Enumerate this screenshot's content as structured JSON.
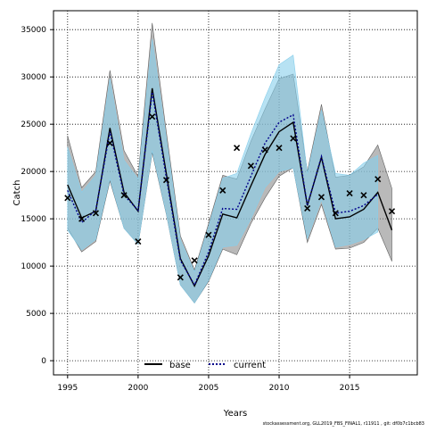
{
  "chart_data": {
    "type": "line",
    "xlabel": "Years",
    "ylabel": "Catch",
    "xlim": [
      1994,
      2019.8
    ],
    "ylim": [
      -1500,
      37000
    ],
    "x_ticks": [
      1995,
      2000,
      2005,
      2010,
      2015
    ],
    "y_ticks": [
      0,
      5000,
      10000,
      15000,
      20000,
      25000,
      30000,
      35000
    ],
    "grid": true,
    "legend_position": "bottom-center",
    "colors": {
      "base_line": "#000000",
      "base_band": "#808080",
      "current_line": "#00008b",
      "current_band": "#87ceeb",
      "observed": "#000000"
    },
    "series": [
      {
        "name": "base",
        "style": "solid",
        "x": [
          1995,
          1996,
          1997,
          1998,
          1999,
          2000,
          2001,
          2002,
          2003,
          2004,
          2005,
          2006,
          2007,
          2008,
          2009,
          2010,
          2011,
          2012,
          2013,
          2014,
          2015,
          2016,
          2017,
          2018
        ],
        "values": [
          18600,
          15100,
          15800,
          24600,
          17800,
          15800,
          28800,
          19800,
          10800,
          7900,
          11100,
          15500,
          15100,
          18500,
          21800,
          24200,
          25200,
          16400,
          21500,
          15000,
          15200,
          16000,
          17800,
          13800
        ],
        "upper": [
          23800,
          18300,
          20000,
          30700,
          22200,
          19500,
          35700,
          24200,
          13200,
          9600,
          14500,
          19600,
          19200,
          23200,
          26600,
          29800,
          30300,
          20000,
          27100,
          19400,
          19600,
          20500,
          22800,
          18200
        ],
        "lower": [
          14000,
          11500,
          12600,
          19000,
          14000,
          12300,
          22000,
          15500,
          8000,
          6100,
          8400,
          11800,
          11200,
          14500,
          17200,
          19500,
          20400,
          12500,
          16500,
          11800,
          11900,
          12500,
          14000,
          10500
        ]
      },
      {
        "name": "current",
        "style": "dotted",
        "x": [
          1995,
          1996,
          1997,
          1998,
          1999,
          2000,
          2001,
          2002,
          2003,
          2004,
          2005,
          2006,
          2007,
          2008,
          2009,
          2010,
          2011,
          2012,
          2013,
          2014,
          2015,
          2016,
          2017
        ],
        "values": [
          18000,
          14600,
          15900,
          24200,
          17500,
          15900,
          28400,
          19400,
          10600,
          8000,
          11500,
          16100,
          16000,
          19500,
          23000,
          25200,
          26000,
          16400,
          21600,
          15600,
          15800,
          16400,
          17600
        ],
        "upper": [
          22600,
          17800,
          19600,
          29800,
          21200,
          19200,
          34000,
          23500,
          12800,
          9400,
          14200,
          19300,
          19800,
          24000,
          27800,
          31300,
          32300,
          19800,
          26500,
          19800,
          19600,
          20900,
          21700
        ],
        "lower": [
          13800,
          11700,
          12800,
          19200,
          14000,
          12300,
          22200,
          15600,
          8000,
          6100,
          8500,
          12000,
          12200,
          15000,
          18300,
          20000,
          20400,
          12900,
          17000,
          12000,
          12300,
          12800,
          13600
        ]
      }
    ],
    "observed": {
      "marker": "x",
      "x": [
        1995,
        1996,
        1997,
        1998,
        1999,
        2000,
        2001,
        2002,
        2003,
        2004,
        2005,
        2006,
        2007,
        2008,
        2009,
        2010,
        2011,
        2012,
        2013,
        2014,
        2015,
        2016,
        2017,
        2018
      ],
      "values": [
        17200,
        15000,
        15600,
        23000,
        17500,
        12600,
        25800,
        19100,
        8800,
        10600,
        13300,
        18000,
        22500,
        20600,
        22300,
        22500,
        23500,
        16100,
        17300,
        15600,
        17700,
        17500,
        19200,
        15800
      ]
    }
  },
  "footer_note": "stockassessment.org, GLL2019_FBS_FINAL1, r11911 , git: df0b7c1bcb83"
}
